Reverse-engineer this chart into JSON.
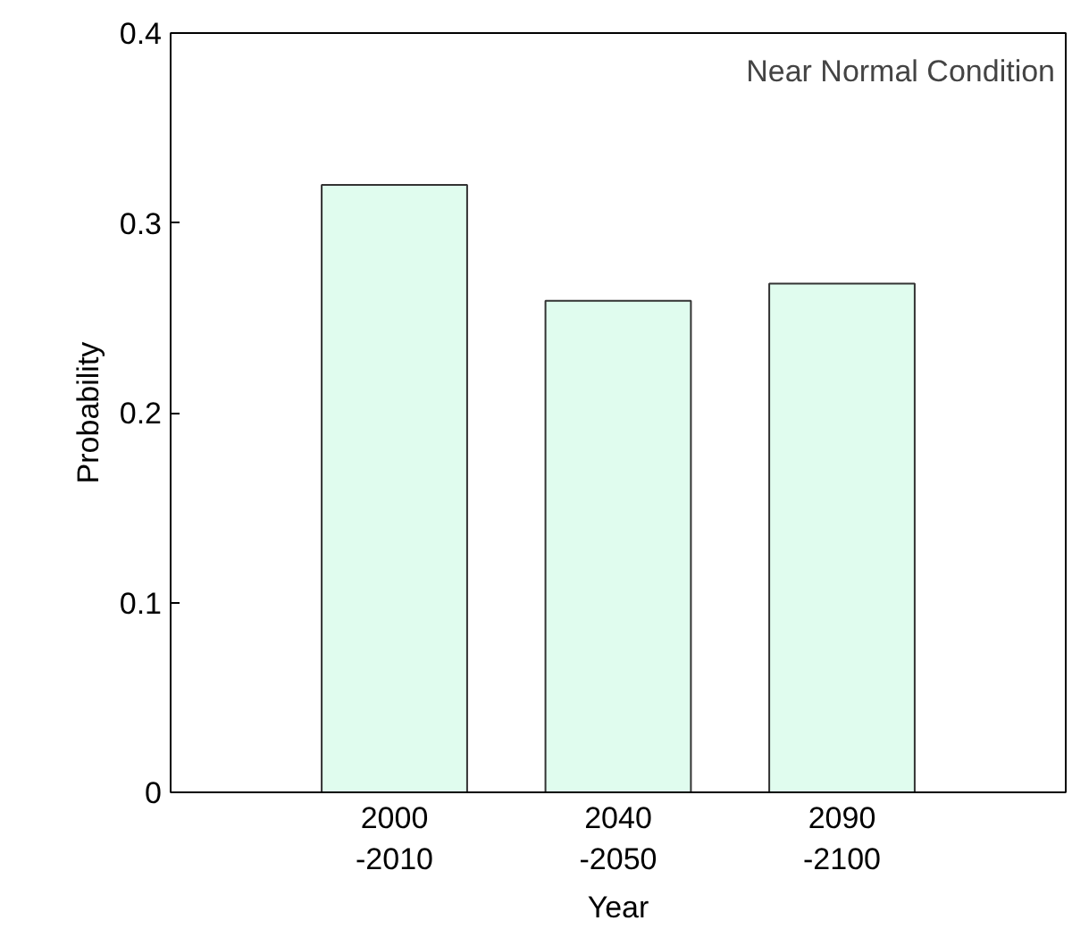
{
  "chart_data": {
    "type": "bar",
    "xlabel": "Year",
    "ylabel": "Probability",
    "categories": [
      "2000\n-2010",
      "2040\n-2050",
      "2090\n-2100"
    ],
    "values": [
      0.32,
      0.259,
      0.268
    ],
    "color": "#e0fcee",
    "ylim": [
      0,
      0.4
    ],
    "yticks": [
      0,
      0.1,
      0.2,
      0.3,
      0.4
    ],
    "grid": false,
    "annotations": [
      "Near Normal Condition"
    ]
  }
}
